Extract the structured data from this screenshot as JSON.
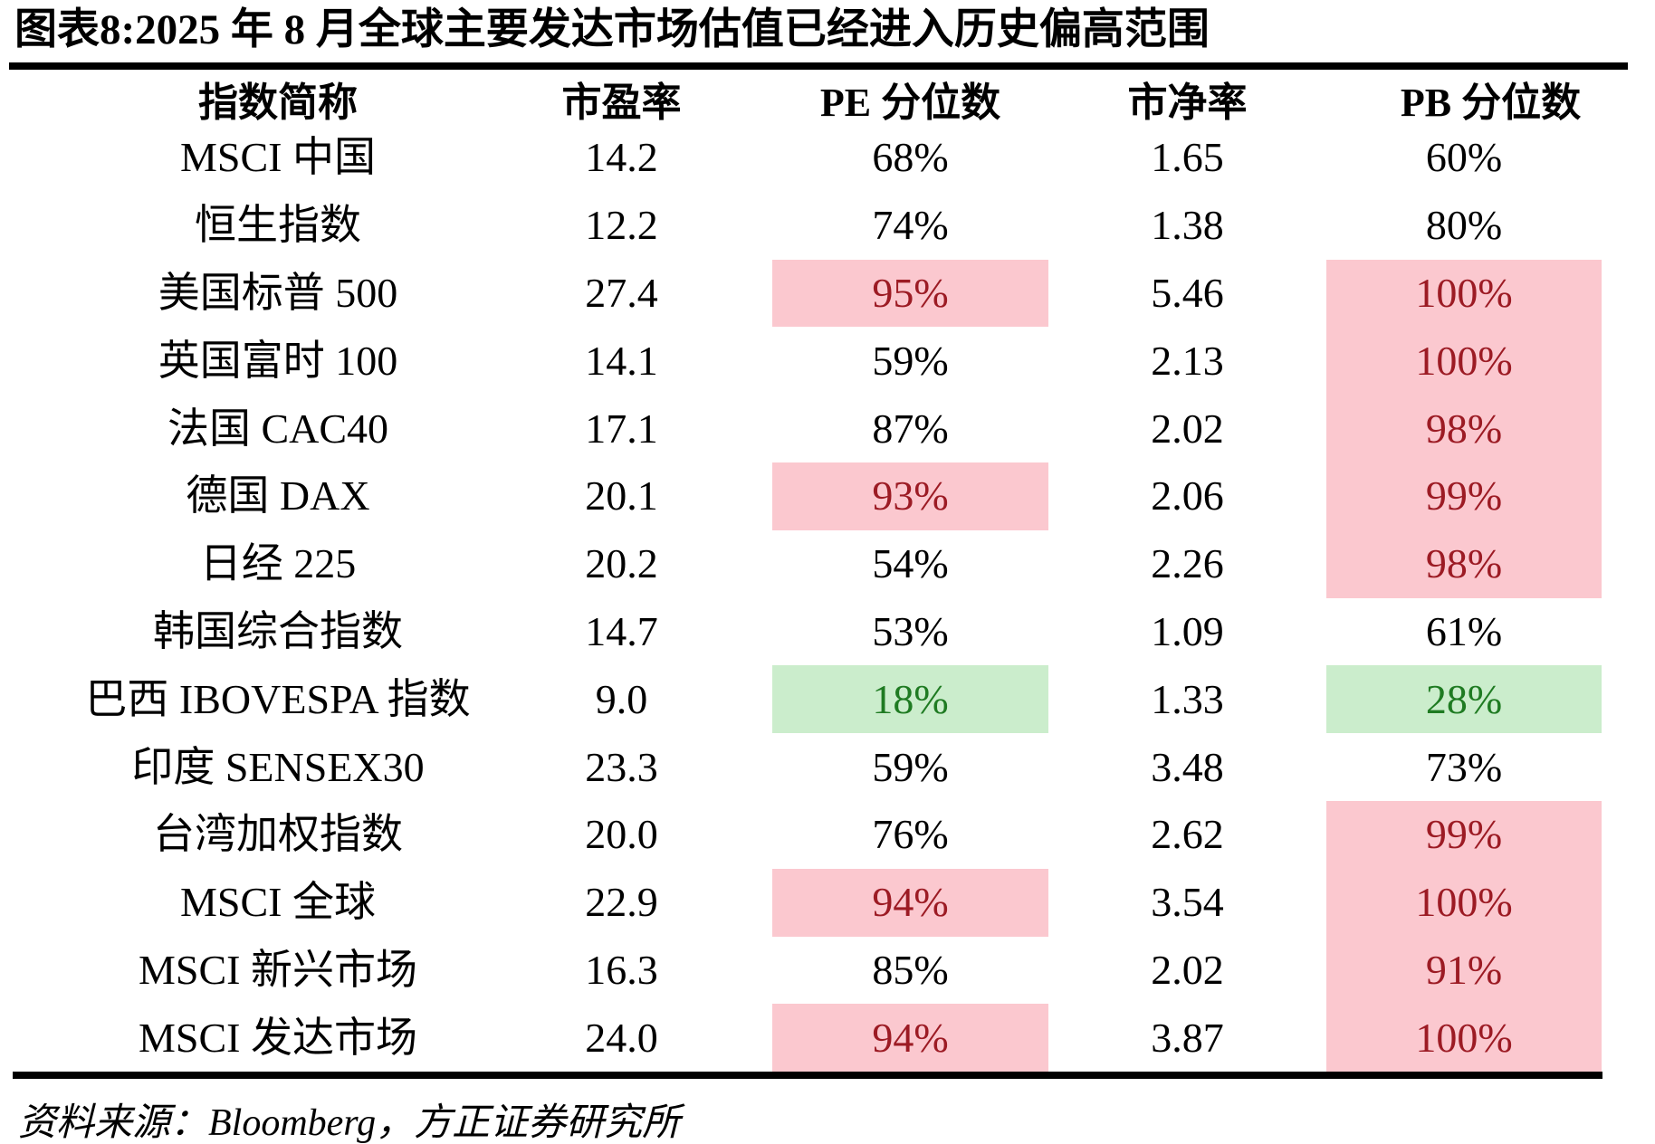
{
  "figure": {
    "title": "图表8:2025 年 8 月全球主要发达市场估值已经进入历史偏高范围",
    "source": "资料来源：Bloomberg，方正证券研究所"
  },
  "colors": {
    "high_percentile_bg": "#FBC8CF",
    "high_percentile_text": "#9C1B24",
    "low_percentile_bg": "#CBEDCC",
    "low_percentile_text": "#1F7B22",
    "rule": "#000000",
    "text": "#000000"
  },
  "chart_data": {
    "type": "table",
    "title": "图表8:2025 年 8 月全球主要发达市场估值已经进入历史偏高范围",
    "columns": [
      "指数简称",
      "市盈率",
      "PE 分位数",
      "市净率",
      "PB 分位数"
    ],
    "rows": [
      {
        "index": "MSCI 中国",
        "pe": "14.2",
        "pe_pctile": "68%",
        "pb": "1.65",
        "pb_pctile": "60%",
        "pe_flag": "none",
        "pb_flag": "none"
      },
      {
        "index": "恒生指数",
        "pe": "12.2",
        "pe_pctile": "74%",
        "pb": "1.38",
        "pb_pctile": "80%",
        "pe_flag": "none",
        "pb_flag": "none"
      },
      {
        "index": "美国标普 500",
        "pe": "27.4",
        "pe_pctile": "95%",
        "pb": "5.46",
        "pb_pctile": "100%",
        "pe_flag": "high",
        "pb_flag": "high"
      },
      {
        "index": "英国富时 100",
        "pe": "14.1",
        "pe_pctile": "59%",
        "pb": "2.13",
        "pb_pctile": "100%",
        "pe_flag": "none",
        "pb_flag": "high"
      },
      {
        "index": "法国 CAC40",
        "pe": "17.1",
        "pe_pctile": "87%",
        "pb": "2.02",
        "pb_pctile": "98%",
        "pe_flag": "none",
        "pb_flag": "high"
      },
      {
        "index": "德国 DAX",
        "pe": "20.1",
        "pe_pctile": "93%",
        "pb": "2.06",
        "pb_pctile": "99%",
        "pe_flag": "high",
        "pb_flag": "high"
      },
      {
        "index": "日经 225",
        "pe": "20.2",
        "pe_pctile": "54%",
        "pb": "2.26",
        "pb_pctile": "98%",
        "pe_flag": "none",
        "pb_flag": "high"
      },
      {
        "index": "韩国综合指数",
        "pe": "14.7",
        "pe_pctile": "53%",
        "pb": "1.09",
        "pb_pctile": "61%",
        "pe_flag": "none",
        "pb_flag": "none"
      },
      {
        "index": "巴西 IBOVESPA 指数",
        "pe": "9.0",
        "pe_pctile": "18%",
        "pb": "1.33",
        "pb_pctile": "28%",
        "pe_flag": "low",
        "pb_flag": "low"
      },
      {
        "index": "印度 SENSEX30",
        "pe": "23.3",
        "pe_pctile": "59%",
        "pb": "3.48",
        "pb_pctile": "73%",
        "pe_flag": "none",
        "pb_flag": "none"
      },
      {
        "index": "台湾加权指数",
        "pe": "20.0",
        "pe_pctile": "76%",
        "pb": "2.62",
        "pb_pctile": "99%",
        "pe_flag": "none",
        "pb_flag": "high"
      },
      {
        "index": "MSCI 全球",
        "pe": "22.9",
        "pe_pctile": "94%",
        "pb": "3.54",
        "pb_pctile": "100%",
        "pe_flag": "high",
        "pb_flag": "high"
      },
      {
        "index": "MSCI 新兴市场",
        "pe": "16.3",
        "pe_pctile": "85%",
        "pb": "2.02",
        "pb_pctile": "91%",
        "pe_flag": "none",
        "pb_flag": "high"
      },
      {
        "index": "MSCI 发达市场",
        "pe": "24.0",
        "pe_pctile": "94%",
        "pb": "3.87",
        "pb_pctile": "100%",
        "pe_flag": "high",
        "pb_flag": "high"
      }
    ]
  }
}
